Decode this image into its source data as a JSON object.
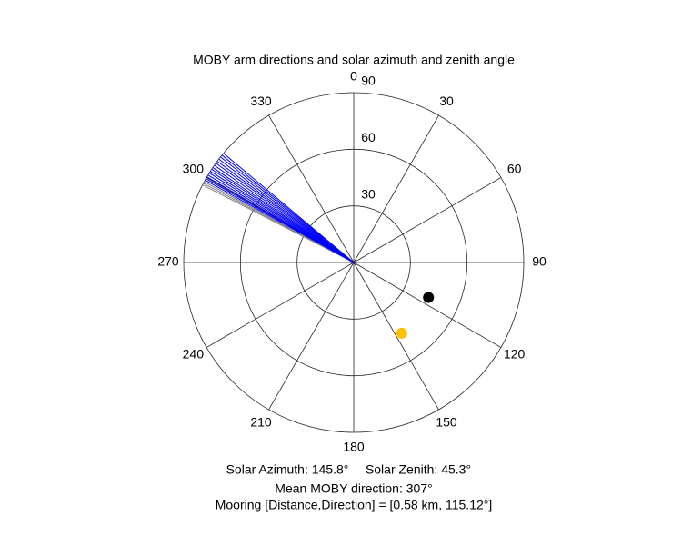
{
  "chart_data": {
    "type": "polar",
    "title": "MOBY arm directions and solar azimuth and zenith angle",
    "thetaticks": [
      0,
      30,
      60,
      90,
      120,
      150,
      180,
      210,
      240,
      270,
      300,
      330
    ],
    "rlim": [
      0,
      90
    ],
    "rticks": [
      30,
      60,
      90
    ],
    "series": [
      {
        "color": "#808080",
        "theta": [
          297.2,
          297.8,
          298.4
        ],
        "r": [
          90,
          90,
          90
        ]
      },
      {
        "color": "#0000ff",
        "theta": [
          299.0,
          299.6,
          300.3,
          301.0,
          301.8,
          302.5,
          303.3,
          304.0,
          304.9,
          305.8,
          306.6,
          307.5,
          308.4,
          309.2,
          310.0
        ],
        "r": [
          90,
          90,
          90,
          90,
          90,
          90,
          90,
          90,
          90,
          90,
          90,
          90,
          90,
          90,
          90
        ]
      },
      {
        "color": "#000000",
        "theta": [
          115.12
        ],
        "r": [
          43.7
        ]
      },
      {
        "color": "#ffc000",
        "theta": [
          145.8
        ],
        "r": [
          45.3
        ]
      }
    ],
    "annotations": [
      "Solar Azimuth: 145.8°",
      "Solar Zenith: 45.3°",
      "Mean MOBY direction: 307°",
      "Mooring [Distance,Direction] = [0.58 km, 115.12°]"
    ]
  }
}
